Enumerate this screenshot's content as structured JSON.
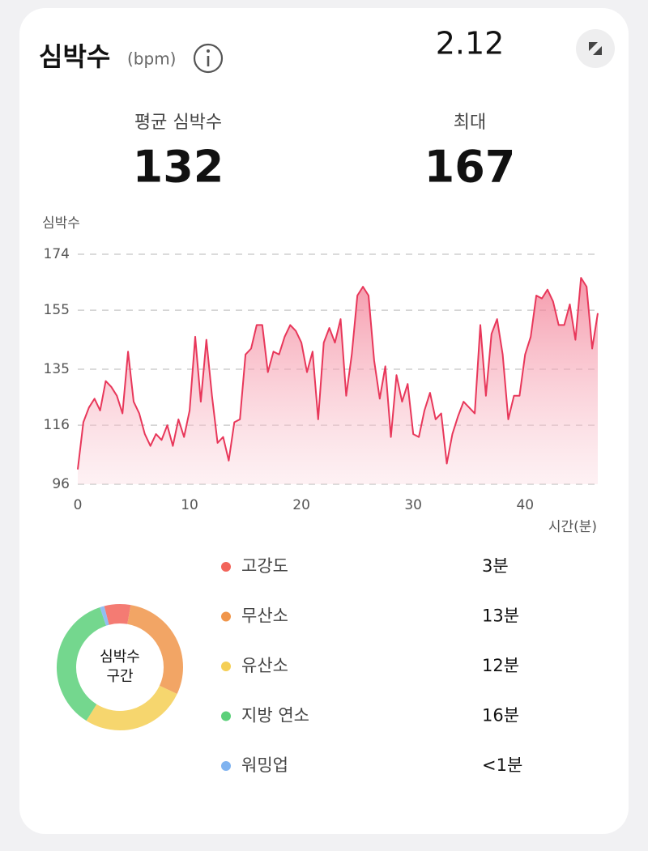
{
  "header": {
    "title": "심박수",
    "unit": "(bpm)",
    "date": "2.12"
  },
  "stats": [
    {
      "label": "평균 심박수",
      "value": 132
    },
    {
      "label": "최대",
      "value": 167
    }
  ],
  "chart_data": {
    "type": "line",
    "y_label": "심박수",
    "x_label": "시간(분)",
    "color": "#e8375a",
    "grid": true,
    "xlim": [
      0,
      46.5
    ],
    "ylim": [
      96,
      174
    ],
    "xticks": [
      0,
      10,
      20,
      30,
      40
    ],
    "yticks": [
      96,
      116,
      135,
      155,
      174
    ],
    "x": [
      0,
      0.5,
      1,
      1.5,
      2,
      2.5,
      3,
      3.5,
      4,
      4.5,
      5,
      5.5,
      6,
      6.5,
      7,
      7.5,
      8,
      8.5,
      9,
      9.5,
      10,
      10.5,
      11,
      11.5,
      12,
      12.5,
      13,
      13.5,
      14,
      14.5,
      15,
      15.5,
      16,
      16.5,
      17,
      17.5,
      18,
      18.5,
      19,
      19.5,
      20,
      20.5,
      21,
      21.5,
      22,
      22.5,
      23,
      23.5,
      24,
      24.5,
      25,
      25.5,
      26,
      26.5,
      27,
      27.5,
      28,
      28.5,
      29,
      29.5,
      30,
      30.5,
      31,
      31.5,
      32,
      32.5,
      33,
      33.5,
      34,
      34.5,
      35,
      35.5,
      36,
      36.5,
      37,
      37.5,
      38,
      38.5,
      39,
      39.5,
      40,
      40.5,
      41,
      41.5,
      42,
      42.5,
      43,
      43.5,
      44,
      44.5,
      45,
      45.5,
      46,
      46.5
    ],
    "values": [
      101,
      117,
      122,
      125,
      121,
      131,
      129,
      126,
      120,
      141,
      124,
      120,
      113,
      109,
      113,
      111,
      116,
      109,
      118,
      112,
      121,
      146,
      124,
      145,
      126,
      110,
      112,
      104,
      117,
      118,
      140,
      142,
      150,
      150,
      134,
      141,
      140,
      146,
      150,
      148,
      144,
      134,
      141,
      118,
      144,
      149,
      144,
      152,
      126,
      140,
      160,
      163,
      160,
      138,
      125,
      136,
      112,
      133,
      124,
      130,
      113,
      112,
      121,
      127,
      118,
      120,
      103,
      113,
      119,
      124,
      122,
      120,
      150,
      126,
      147,
      152,
      140,
      118,
      126,
      126,
      140,
      146,
      160,
      159,
      162,
      158,
      150,
      150,
      157,
      145,
      166,
      163,
      142,
      154
    ]
  },
  "zones": {
    "type": "donut",
    "center_label": [
      "심박수",
      "구간"
    ],
    "items": [
      {
        "name": "고강도",
        "color": "#f2645a",
        "value": 3,
        "value_label": "3분"
      },
      {
        "name": "무산소",
        "color": "#f0954a",
        "value": 13,
        "value_label": "13분"
      },
      {
        "name": "유산소",
        "color": "#f5cf55",
        "value": 12,
        "value_label": "12분"
      },
      {
        "name": "지방 연소",
        "color": "#5cd07a",
        "value": 16,
        "value_label": "16분"
      },
      {
        "name": "워밍업",
        "color": "#7fb3f0",
        "value": 0.5,
        "value_label": "<1분"
      }
    ]
  }
}
